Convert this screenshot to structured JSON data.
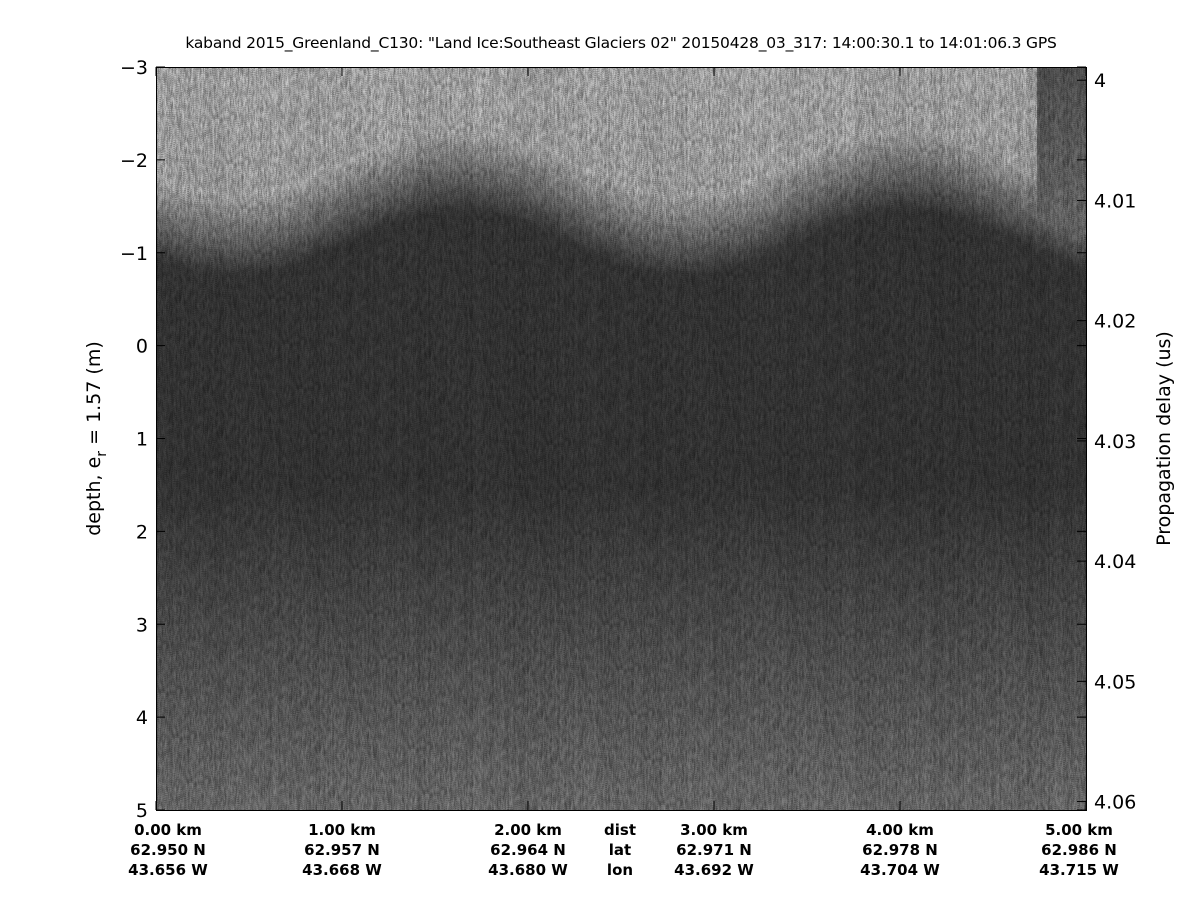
{
  "chart_data": {
    "type": "heatmap",
    "colormap": "gray",
    "title": "kaband 2015_Greenland_C130: \"Land Ice:Southeast  Glaciers 02\"  20150428_03_317: 14:00:30.1 to 14:01:06.3 GPS",
    "ylabel_left": "depth, e",
    "ylabel_left_sub": "r",
    "ylabel_left_suffix": " = 1.57 (m)",
    "ylabel_right": "Propagation delay (us)",
    "ylim_left": [
      -3,
      5
    ],
    "yticks_left": [
      "-3",
      "-2",
      "-1",
      "0",
      "1",
      "2",
      "3",
      "4",
      "5"
    ],
    "ylim_right": [
      3.9989,
      4.0607
    ],
    "yticks_right": [
      "4",
      "4.01",
      "4.02",
      "4.03",
      "4.04",
      "4.05",
      "4.06"
    ],
    "xlim_km": [
      0,
      5
    ],
    "x_rows": {
      "dist": {
        "label": "dist",
        "values": [
          "0.00 km",
          "1.00 km",
          "2.00 km",
          "3.00 km",
          "4.00 km",
          "5.00 km"
        ]
      },
      "lat": {
        "label": "lat",
        "values": [
          "62.950 N",
          "62.957 N",
          "62.964 N",
          "62.971 N",
          "62.978 N",
          "62.986 N"
        ]
      },
      "lon": {
        "label": "lon",
        "values": [
          "43.656 W",
          "43.668 W",
          "43.680 W",
          "43.692 W",
          "43.704 W",
          "43.715 W"
        ]
      }
    },
    "y_axis_reversed": true,
    "grid": false
  }
}
